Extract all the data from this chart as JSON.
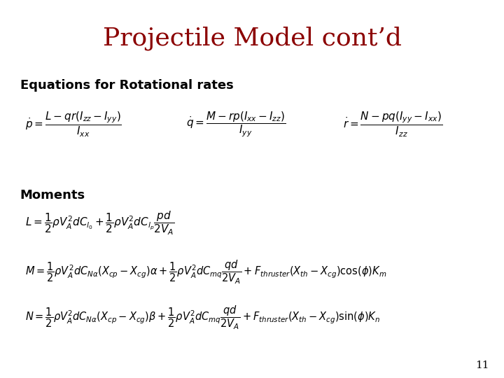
{
  "title": "Projectile Model cont’d",
  "title_color": "#8B0000",
  "title_fontsize": 26,
  "bg_color": "#FFFFFF",
  "section1_label": "Equations for Rotational rates",
  "section2_label": "Moments",
  "eq_rot_p": "\\dot{p} = \\frac{L - qr(I_{zz} - I_{yy})}{I_{xx}}",
  "eq_rot_q": "\\dot{q} = \\frac{M - rp(I_{xx} - I_{zz})}{I_{yy}}",
  "eq_rot_r": "\\dot{r} = \\frac{N - pq(I_{yy} - I_{xx})}{I_{zz}}",
  "eq_L": "L = \\frac{1}{2}\\rho V_A^2 d C_{l_0} + \\frac{1}{2}\\rho V_A^2 d C_{l_p} \\frac{pd}{2V_A}",
  "eq_M": "M = \\frac{1}{2}\\rho V_A^2 d C_{N\\alpha}(X_{cp} - X_{cg})\\alpha + \\frac{1}{2}\\rho V_A^2 d C_{mq} \\frac{qd}{2V_A} + F_{thruster}(X_{th} - X_{cg})\\cos(\\phi)K_m",
  "eq_N": "N = \\frac{1}{2}\\rho V_A^2 d C_{N\\alpha}(X_{cp} - X_{cg})\\beta + \\frac{1}{2}\\rho V_A^2 d C_{mq} \\frac{qd}{2V_A} + F_{thruster}(X_{th} - X_{cg})\\sin(\\phi)K_n",
  "page_number": "11",
  "eq_color": "#000000",
  "label_color": "#000000",
  "eq_fontsize": 11,
  "label_fontsize": 13
}
